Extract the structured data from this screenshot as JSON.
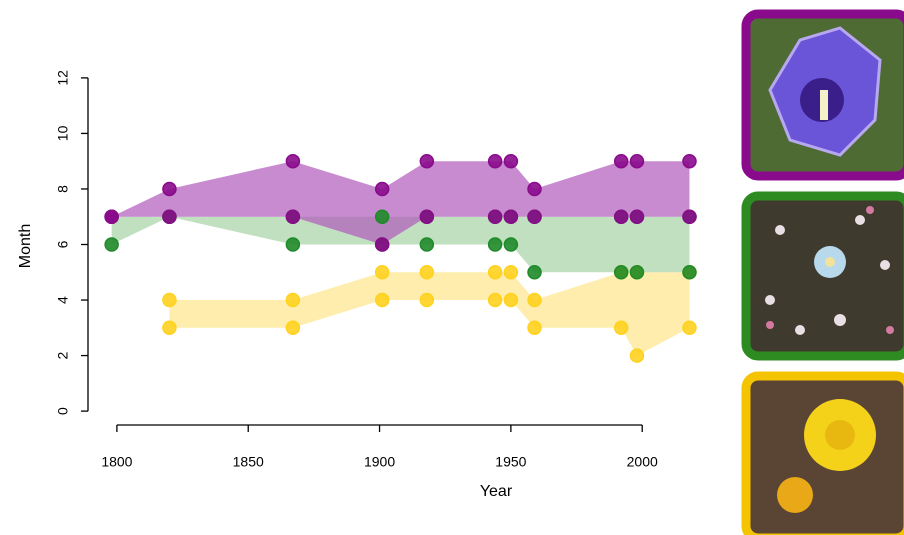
{
  "chart_data": {
    "type": "ribbon",
    "xlabel": "Year",
    "ylabel": "Month",
    "x": [
      1798,
      1820,
      1867,
      1901,
      1918,
      1944,
      1950,
      1959,
      1992,
      1998,
      2018
    ],
    "series": [
      {
        "color": "#fde68a",
        "point_color": "#ffd21f",
        "min": [
          null,
          3,
          3,
          4,
          4,
          4,
          4,
          3,
          3,
          2,
          3
        ],
        "max": [
          null,
          4,
          4,
          5,
          5,
          5,
          5,
          4,
          5,
          5,
          5
        ]
      },
      {
        "color": "#a5d3a5",
        "point_color": "#1f8a2a",
        "min": [
          6,
          7,
          6,
          6,
          6,
          6,
          6,
          5,
          5,
          5,
          5
        ],
        "max": [
          7,
          7,
          7,
          7,
          7,
          7,
          7,
          7,
          7,
          7,
          7
        ]
      },
      {
        "color": "#b05abc",
        "point_color": "#8a0a8c",
        "min": [
          7,
          7,
          7,
          6,
          7,
          7,
          7,
          7,
          7,
          7,
          7
        ],
        "max": [
          7,
          8,
          9,
          8,
          9,
          9,
          9,
          8,
          9,
          9,
          9
        ]
      }
    ],
    "xlim": [
      1789,
      2022
    ],
    "ylim": [
      -0.5,
      12.5
    ],
    "xticks": [
      1800,
      1850,
      1900,
      1950,
      2000
    ],
    "yticks": [
      0,
      2,
      4,
      6,
      8,
      10,
      12
    ]
  }
}
